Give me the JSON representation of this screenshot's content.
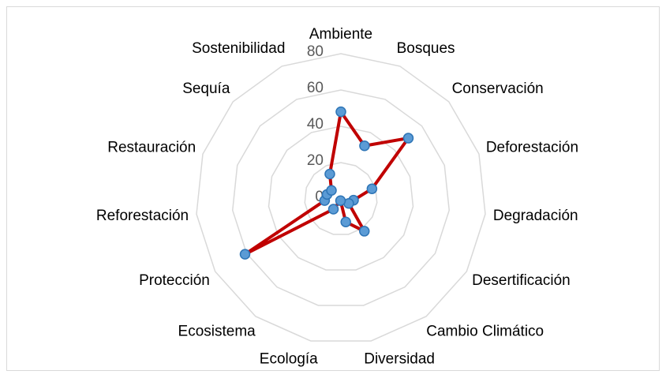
{
  "chart_data": {
    "type": "radar",
    "categories": [
      "Ambiente",
      "Bosques",
      "Conservación",
      "Deforestación",
      "Degradación",
      "Desertificación",
      "Cambio Climático",
      "Diversidad",
      "Ecología",
      "Ecosistema",
      "Protección",
      "Reforestación",
      "Restauración",
      "Sequía",
      "Sostenibilidad"
    ],
    "values": [
      48,
      32,
      50,
      18,
      7,
      5,
      22,
      13,
      1,
      7,
      61,
      9,
      8,
      7,
      15
    ],
    "color": "#c00000",
    "marker_color": "#5b9bd5",
    "ylim": [
      0,
      80
    ],
    "yticks": [
      0,
      20,
      40,
      60,
      80
    ],
    "grid": true
  }
}
